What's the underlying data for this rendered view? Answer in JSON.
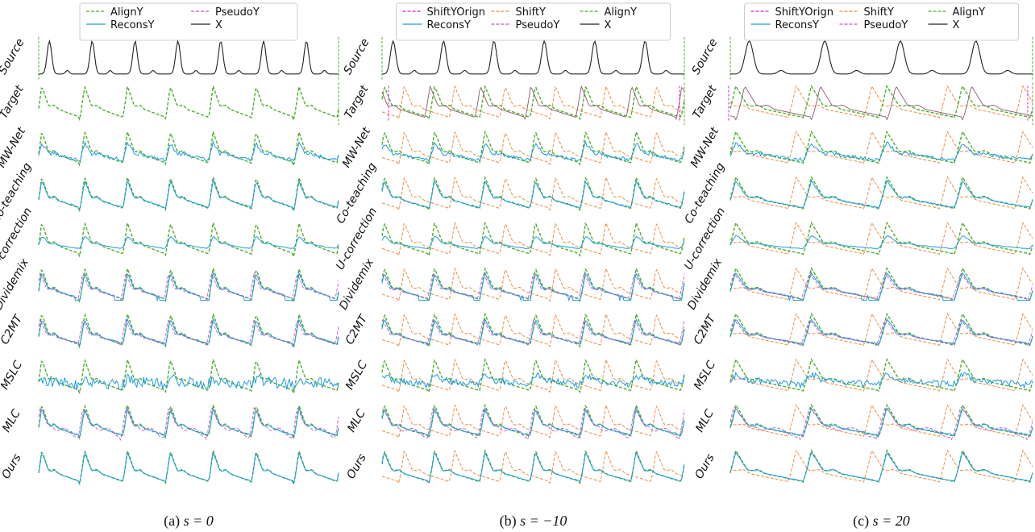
{
  "chart_data": {
    "type": "line",
    "rows": [
      "Source",
      "Target",
      "MW-Net",
      "Co-teaching",
      "U-correction",
      "Dividemix",
      "C2MT",
      "MSLC",
      "MLC",
      "Ours"
    ],
    "panels": [
      {
        "caption_prefix": "(a) ",
        "caption_math": "s = 0",
        "shift": 0,
        "legend": [
          "AlignY",
          "PseudoY",
          "ReconsY",
          "X"
        ],
        "series": [
          "X",
          "AlignY",
          "ReconsY",
          "PseudoY"
        ],
        "peak_count": 7
      },
      {
        "caption_prefix": "(b) ",
        "caption_math": "s = −10",
        "shift": -10,
        "legend": [
          "ShiftYOrign",
          "ShiftY",
          "AlignY",
          "ReconsY",
          "PseudoY",
          "X"
        ],
        "series": [
          "X",
          "AlignY",
          "ShiftY",
          "ShiftYOrign",
          "ReconsY",
          "PseudoY"
        ],
        "peak_count": 6
      },
      {
        "caption_prefix": "(c) ",
        "caption_math": "s = 20",
        "shift": 20,
        "legend": [
          "ShiftYOrign",
          "ShiftY",
          "AlignY",
          "ReconsY",
          "PseudoY",
          "X"
        ],
        "series": [
          "X",
          "AlignY",
          "ShiftY",
          "ShiftYOrign",
          "ReconsY",
          "PseudoY"
        ],
        "peak_count": 4
      }
    ],
    "series_styles": {
      "X": {
        "color": "#222222",
        "dash": "none"
      },
      "AlignY": {
        "color": "#4caf2a",
        "dash": "dashed"
      },
      "ReconsY": {
        "color": "#1f9be0",
        "dash": "none"
      },
      "PseudoY": {
        "color": "#c255d6",
        "dash": "dashed"
      },
      "ShiftY": {
        "color": "#f08a3c",
        "dash": "dashed"
      },
      "ShiftYOrign": {
        "color": "#e01bd6",
        "dash": "dashed"
      }
    },
    "grid": false,
    "legend_position": "top-center"
  }
}
